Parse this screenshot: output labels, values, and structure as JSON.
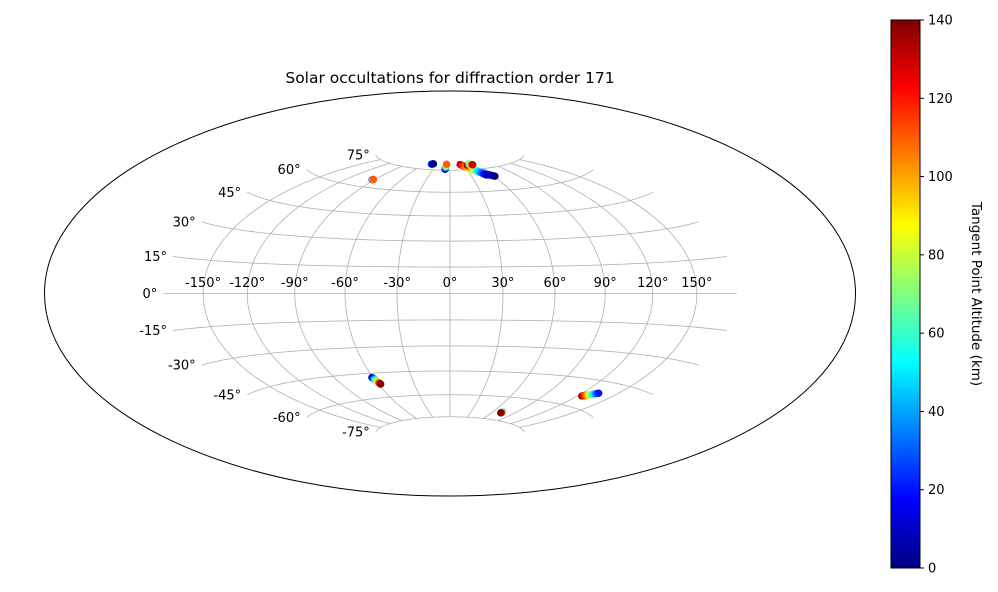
{
  "chart_data": {
    "type": "scatter",
    "projection": "hammer",
    "title": "Solar occultations for diffraction order 171",
    "grid": true,
    "lon_ticks": [
      -150,
      -120,
      -90,
      -60,
      -30,
      0,
      30,
      60,
      90,
      120,
      150
    ],
    "lat_ticks": [
      -75,
      -60,
      -45,
      -30,
      -15,
      0,
      15,
      30,
      45,
      60,
      75
    ],
    "lon_tick_labels": [
      "-150°",
      "-120°",
      "-90°",
      "-60°",
      "-30°",
      "0°",
      "30°",
      "60°",
      "90°",
      "120°",
      "150°"
    ],
    "lat_tick_labels": [
      "-75°",
      "-60°",
      "-45°",
      "-30°",
      "-15°",
      "0°",
      "15°",
      "30°",
      "45°",
      "60°",
      "75°"
    ],
    "colorbar": {
      "label": "Tangent Point Altitude (km)",
      "min": 0,
      "max": 140,
      "ticks": [
        0,
        20,
        40,
        60,
        80,
        100,
        120,
        140
      ],
      "colormap": "jet"
    },
    "tracks": [
      {
        "points": [
          [
            -92.6,
            64.7,
            0
          ],
          [
            -92.4,
            64.8,
            40
          ],
          [
            -92.2,
            64.9,
            80
          ],
          [
            -92.0,
            65.0,
            110
          ]
        ]
      },
      {
        "points": [
          [
            -43.0,
            78.8,
            40
          ],
          [
            -41.0,
            79.0,
            20
          ],
          [
            -39.0,
            79.2,
            0
          ]
        ]
      },
      {
        "points": [
          [
            -8.8,
            75.6,
            0
          ],
          [
            -8.6,
            76.5,
            20
          ],
          [
            -8.3,
            77.6,
            50
          ],
          [
            -8.1,
            78.6,
            80
          ],
          [
            -7.9,
            79.3,
            110
          ]
        ]
      },
      {
        "points": [
          [
            23.0,
            79.0,
            135
          ],
          [
            33.0,
            76.5,
            100
          ],
          [
            42.0,
            74.0,
            70
          ],
          [
            50.0,
            72.0,
            40
          ],
          [
            56.0,
            70.5,
            20
          ],
          [
            61.0,
            69.3,
            0
          ]
        ]
      },
      {
        "points": [
          [
            37.0,
            78.0,
            140
          ],
          [
            40.0,
            76.4,
            110
          ],
          [
            43.0,
            74.8,
            80
          ],
          [
            46.0,
            73.3,
            50
          ],
          [
            49.0,
            71.8,
            30
          ],
          [
            52.0,
            70.5,
            10
          ]
        ]
      },
      {
        "points": [
          [
            44.0,
            79.0,
            50
          ],
          [
            47.0,
            78.6,
            80
          ],
          [
            50.0,
            78.2,
            130
          ]
        ]
      },
      {
        "points": [
          [
            -61.0,
            -47.5,
            0
          ],
          [
            -60.2,
            -48.6,
            35
          ],
          [
            -59.5,
            -49.7,
            65
          ],
          [
            -58.8,
            -50.7,
            95
          ],
          [
            -58.0,
            -51.8,
            140
          ]
        ]
      },
      {
        "points": [
          [
            73.0,
            -69.5,
            40
          ],
          [
            72.6,
            -69.9,
            90
          ],
          [
            72.3,
            -70.2,
            140
          ]
        ]
      },
      {
        "points": [
          [
            124.0,
            -54.0,
            140
          ],
          [
            126.5,
            -53.3,
            110
          ],
          [
            129.0,
            -52.5,
            80
          ],
          [
            131.5,
            -51.8,
            50
          ],
          [
            134.0,
            -51.0,
            20
          ]
        ]
      }
    ]
  }
}
